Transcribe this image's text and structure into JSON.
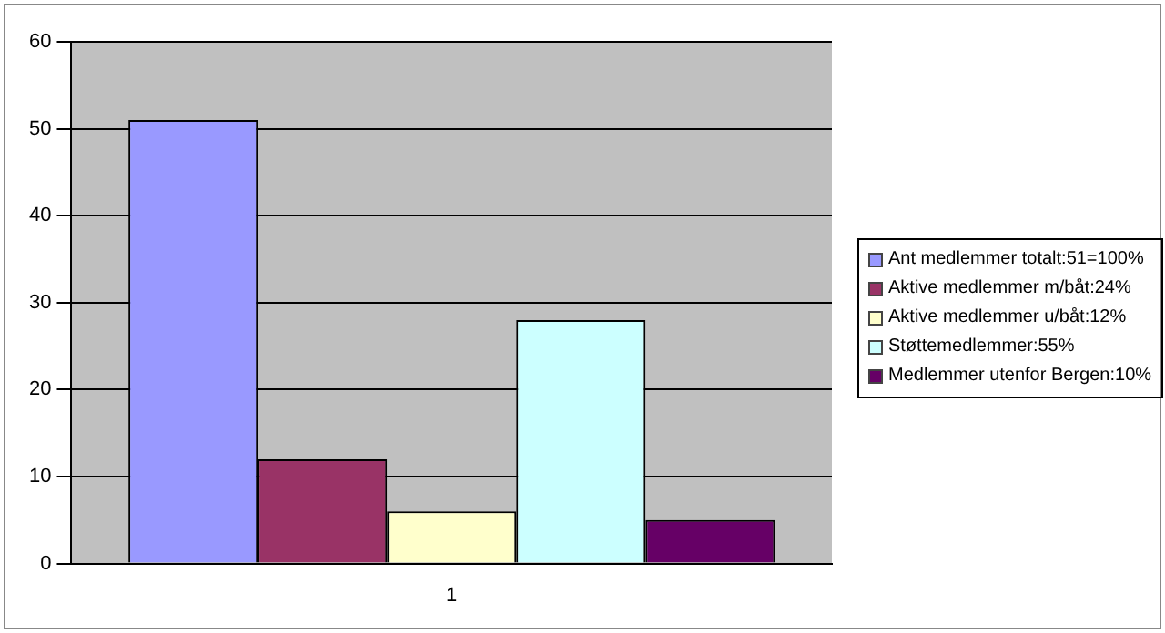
{
  "chart_data": {
    "type": "bar",
    "categories": [
      "1"
    ],
    "series": [
      {
        "name": "Ant medlemmer totalt:51=100%",
        "color": "#9999ff",
        "values": [
          51
        ]
      },
      {
        "name": "Aktive medlemmer m/båt:24%",
        "color": "#993366",
        "values": [
          12
        ]
      },
      {
        "name": "Aktive medlemmer u/båt:12%",
        "color": "#ffffcc",
        "values": [
          6
        ]
      },
      {
        "name": "Støttemedlemmer:55%",
        "color": "#ccffff",
        "values": [
          28
        ]
      },
      {
        "name": "Medlemmer utenfor Bergen:10%",
        "color": "#660066",
        "values": [
          5
        ]
      }
    ],
    "ylim": [
      0,
      60
    ],
    "yticks": [
      0,
      10,
      20,
      30,
      40,
      50,
      60
    ],
    "grid": "y",
    "legend": "right"
  }
}
